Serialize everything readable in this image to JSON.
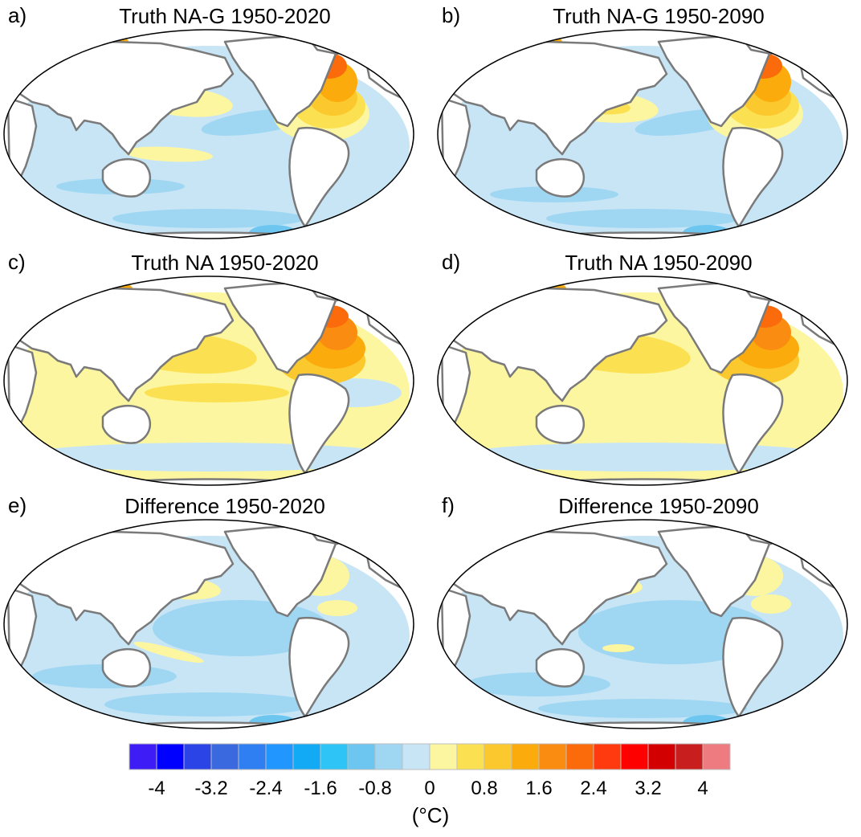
{
  "panels": [
    {
      "letter": "a)",
      "title": "Truth NA-G 1950-2020"
    },
    {
      "letter": "b)",
      "title": "Truth NA-G 1950-2090"
    },
    {
      "letter": "c)",
      "title": "Truth NA 1950-2020"
    },
    {
      "letter": "d)",
      "title": "Truth NA 1950-2090"
    },
    {
      "letter": "e)",
      "title": "Difference 1950-2020"
    },
    {
      "letter": "f)",
      "title": "Difference 1950-2090"
    }
  ],
  "colorbar": {
    "colors": [
      "#3d1cf5",
      "#0000ff",
      "#2a44e6",
      "#3a68df",
      "#2f7ef2",
      "#2196ff",
      "#13aaf5",
      "#2fc4f6",
      "#6dc6f0",
      "#9fd7f3",
      "#c8e5f6",
      "#fdf6a0",
      "#fbe152",
      "#fbc92e",
      "#fbab0b",
      "#fb8c12",
      "#fb6b0c",
      "#ff3a0e",
      "#ff0000",
      "#d20000",
      "#c81e1e",
      "#ee7b80"
    ],
    "tick_labels": [
      "-4",
      "-3.2",
      "-2.4",
      "-1.6",
      "-0.8",
      "0",
      "0.8",
      "1.6",
      "2.4",
      "3.2",
      "4"
    ],
    "unit": "(°C)"
  },
  "fill_colors": {
    "light_blue": "#c8e5f6",
    "mid_blue": "#9fd7f3",
    "blue": "#6dc6f0",
    "pale_yellow": "#fdf6a0",
    "yellow": "#fbe152",
    "gold": "#fbc92e",
    "orange": "#fbab0b",
    "dark_orange": "#fb8c12",
    "red_orange": "#fb6b0c",
    "red": "#ff0000",
    "coast": "#7a7a7a",
    "land": "#ffffff"
  }
}
